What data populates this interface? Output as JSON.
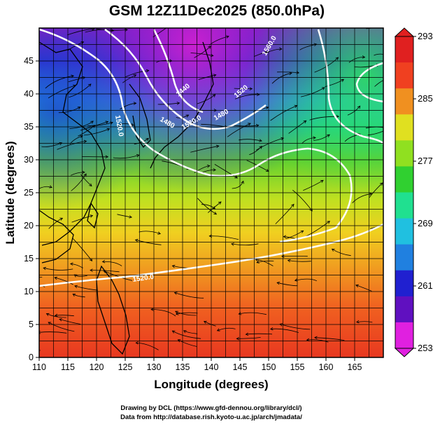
{
  "title": "GSM 12Z11Dec2025 (850.0hPa)",
  "x_axis": {
    "label": "Longitude (degrees)",
    "range": [
      110,
      170
    ],
    "ticks": [
      "110",
      "115",
      "120",
      "125",
      "130",
      "135",
      "140",
      "145",
      "150",
      "155",
      "160",
      "165"
    ]
  },
  "y_axis": {
    "label": "Latitude  (degrees)",
    "range": [
      0,
      50
    ],
    "ticks": [
      "0",
      "5",
      "10",
      "15",
      "20",
      "25",
      "30",
      "35",
      "40",
      "45"
    ]
  },
  "colorbar": {
    "range": [
      253,
      293
    ],
    "ticks": [
      "253",
      "261",
      "269",
      "277",
      "285",
      "293"
    ],
    "colors": [
      "#e020e0",
      "#6010c0",
      "#2020d0",
      "#2080e0",
      "#20c0e0",
      "#20e090",
      "#30d030",
      "#90e020",
      "#e0e020",
      "#f09020",
      "#f04020",
      "#e02020"
    ]
  },
  "contours": {
    "labels": [
      "1520.0",
      "1480",
      "1520.0",
      "1440",
      "1520",
      "1480",
      "1560.0",
      "1520.0"
    ]
  },
  "credits": {
    "line1": "Drawing by DCL (https://www.gfd-dennou.org/library/dcl/)",
    "line2": "Data from http://database.rish.kyoto-u.ac.jp/arch/jmadata/"
  },
  "grid": true
}
